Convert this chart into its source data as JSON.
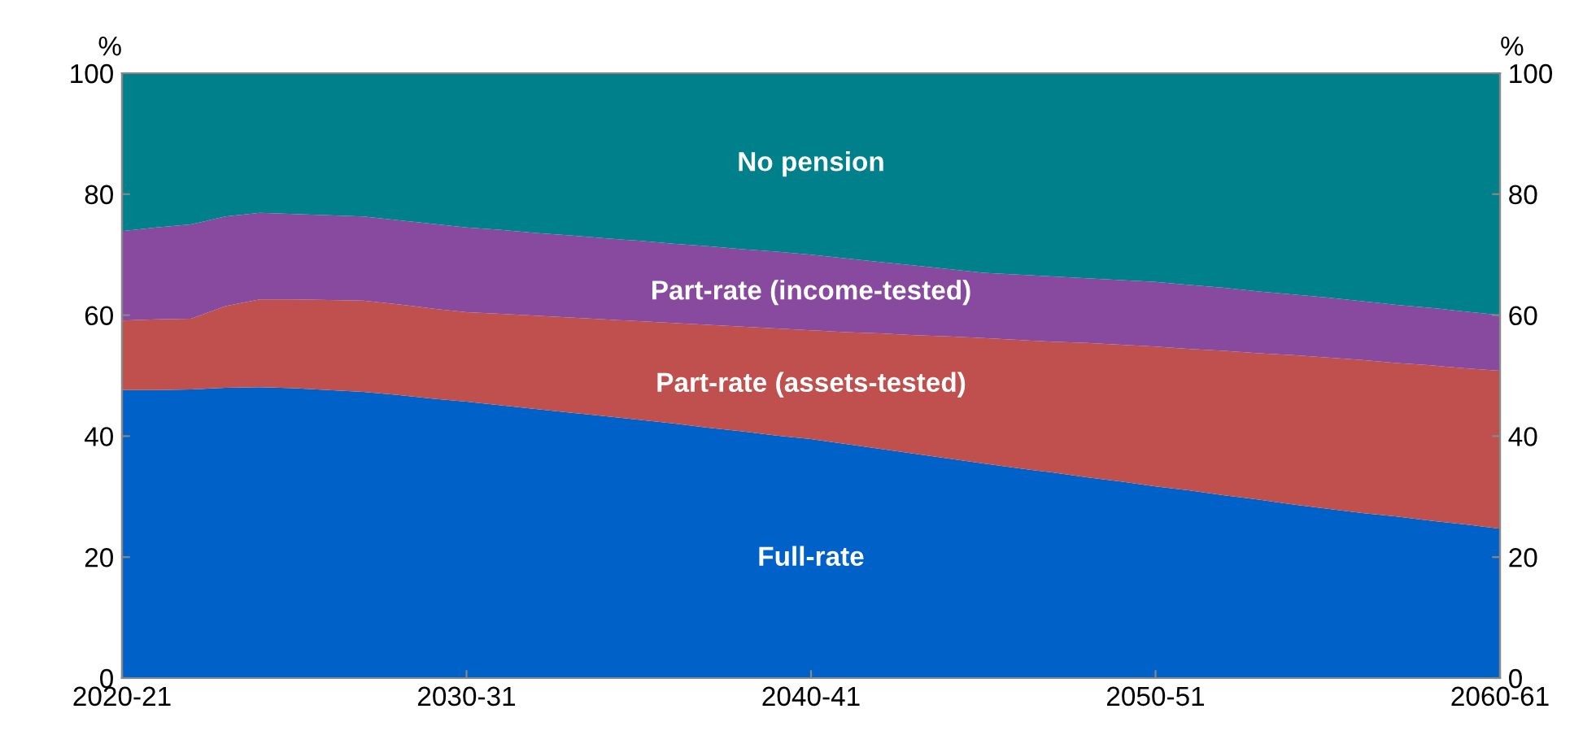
{
  "chart_data": {
    "type": "area",
    "stacked": true,
    "ylabel": "%",
    "y2label": "%",
    "categories": [
      "2020-21",
      null,
      null,
      null,
      null,
      null,
      null,
      null,
      null,
      null,
      "2030-31",
      null,
      null,
      null,
      null,
      null,
      null,
      null,
      null,
      null,
      "2040-41",
      null,
      null,
      null,
      null,
      null,
      null,
      null,
      null,
      null,
      "2050-51",
      null,
      null,
      null,
      null,
      null,
      null,
      null,
      null,
      null,
      "2060-61"
    ],
    "series": [
      {
        "name": "Full-rate",
        "color": "#0062c8",
        "values": [
          47.6,
          47.6,
          47.7,
          48.0,
          48.1,
          47.9,
          47.6,
          47.3,
          46.8,
          46.2,
          45.7,
          45.1,
          44.5,
          43.9,
          43.3,
          42.7,
          42.1,
          41.4,
          40.8,
          40.1,
          39.5,
          38.7,
          37.9,
          37.1,
          36.3,
          35.5,
          34.7,
          34.0,
          33.2,
          32.5,
          31.7,
          31.0,
          30.2,
          29.5,
          28.7,
          28.0,
          27.3,
          26.7,
          26.0,
          25.4,
          24.7
        ]
      },
      {
        "name": "Part-rate (assets-tested)",
        "color": "#c0504d",
        "values": [
          11.5,
          11.7,
          11.7,
          13.5,
          14.5,
          14.7,
          14.9,
          15.1,
          15.0,
          14.9,
          14.8,
          15.1,
          15.4,
          15.7,
          16.0,
          16.3,
          16.6,
          17.0,
          17.3,
          17.7,
          18.0,
          18.5,
          19.1,
          19.6,
          20.2,
          20.7,
          21.2,
          21.6,
          22.2,
          22.6,
          23.1,
          23.4,
          23.9,
          24.2,
          24.7,
          25.0,
          25.3,
          25.4,
          25.7,
          25.8,
          26.1
        ]
      },
      {
        "name": "Part-rate (income-tested)",
        "color": "#874a9e",
        "values": [
          14.8,
          15.2,
          15.6,
          14.8,
          14.3,
          14.1,
          14.0,
          13.9,
          13.9,
          14.0,
          14.0,
          13.9,
          13.7,
          13.6,
          13.4,
          13.3,
          13.1,
          13.0,
          12.8,
          12.7,
          12.5,
          12.2,
          11.8,
          11.5,
          11.1,
          10.8,
          10.8,
          10.8,
          10.7,
          10.7,
          10.7,
          10.6,
          10.4,
          10.2,
          10.0,
          9.9,
          9.7,
          9.6,
          9.5,
          9.4,
          9.2
        ]
      },
      {
        "name": "No pension",
        "color": "#00808a",
        "values": [
          26.1,
          25.5,
          25.0,
          23.7,
          23.1,
          23.3,
          23.5,
          23.7,
          24.3,
          24.9,
          25.5,
          25.9,
          26.4,
          26.8,
          27.3,
          27.7,
          28.2,
          28.6,
          29.1,
          29.5,
          30.0,
          30.6,
          31.2,
          31.8,
          32.4,
          33.0,
          33.3,
          33.6,
          33.9,
          34.2,
          34.5,
          35.0,
          35.5,
          36.1,
          36.6,
          37.1,
          37.7,
          38.3,
          38.8,
          39.4,
          40.0
        ]
      }
    ],
    "ylim": [
      0,
      100
    ],
    "yticks": [
      0,
      20,
      40,
      60,
      80,
      100
    ],
    "y2lim": [
      0,
      100
    ],
    "y2ticks": [
      0,
      20,
      40,
      60,
      80,
      100
    ],
    "grid": false,
    "legend": false
  }
}
